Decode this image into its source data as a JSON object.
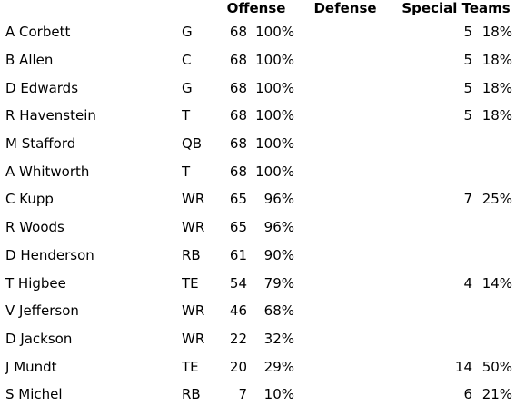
{
  "headers": {
    "offense": "Offense",
    "defense": "Defense",
    "special_teams": "Special Teams"
  },
  "players": [
    {
      "name": "A Corbett",
      "pos": "G",
      "off_snaps": "68",
      "off_pct": "100%",
      "def_snaps": "",
      "def_pct": "",
      "st_snaps": "5",
      "st_pct": "18%"
    },
    {
      "name": "B Allen",
      "pos": "C",
      "off_snaps": "68",
      "off_pct": "100%",
      "def_snaps": "",
      "def_pct": "",
      "st_snaps": "5",
      "st_pct": "18%"
    },
    {
      "name": "D Edwards",
      "pos": "G",
      "off_snaps": "68",
      "off_pct": "100%",
      "def_snaps": "",
      "def_pct": "",
      "st_snaps": "5",
      "st_pct": "18%"
    },
    {
      "name": "R Havenstein",
      "pos": "T",
      "off_snaps": "68",
      "off_pct": "100%",
      "def_snaps": "",
      "def_pct": "",
      "st_snaps": "5",
      "st_pct": "18%"
    },
    {
      "name": "M Stafford",
      "pos": "QB",
      "off_snaps": "68",
      "off_pct": "100%",
      "def_snaps": "",
      "def_pct": "",
      "st_snaps": "",
      "st_pct": ""
    },
    {
      "name": "A Whitworth",
      "pos": "T",
      "off_snaps": "68",
      "off_pct": "100%",
      "def_snaps": "",
      "def_pct": "",
      "st_snaps": "",
      "st_pct": ""
    },
    {
      "name": "C Kupp",
      "pos": "WR",
      "off_snaps": "65",
      "off_pct": "96%",
      "def_snaps": "",
      "def_pct": "",
      "st_snaps": "7",
      "st_pct": "25%"
    },
    {
      "name": "R Woods",
      "pos": "WR",
      "off_snaps": "65",
      "off_pct": "96%",
      "def_snaps": "",
      "def_pct": "",
      "st_snaps": "",
      "st_pct": ""
    },
    {
      "name": "D Henderson",
      "pos": "RB",
      "off_snaps": "61",
      "off_pct": "90%",
      "def_snaps": "",
      "def_pct": "",
      "st_snaps": "",
      "st_pct": ""
    },
    {
      "name": "T Higbee",
      "pos": "TE",
      "off_snaps": "54",
      "off_pct": "79%",
      "def_snaps": "",
      "def_pct": "",
      "st_snaps": "4",
      "st_pct": "14%"
    },
    {
      "name": "V Jefferson",
      "pos": "WR",
      "off_snaps": "46",
      "off_pct": "68%",
      "def_snaps": "",
      "def_pct": "",
      "st_snaps": "",
      "st_pct": ""
    },
    {
      "name": "D Jackson",
      "pos": "WR",
      "off_snaps": "22",
      "off_pct": "32%",
      "def_snaps": "",
      "def_pct": "",
      "st_snaps": "",
      "st_pct": ""
    },
    {
      "name": "J Mundt",
      "pos": "TE",
      "off_snaps": "20",
      "off_pct": "29%",
      "def_snaps": "",
      "def_pct": "",
      "st_snaps": "14",
      "st_pct": "50%"
    },
    {
      "name": "S Michel",
      "pos": "RB",
      "off_snaps": "7",
      "off_pct": "10%",
      "def_snaps": "",
      "def_pct": "",
      "st_snaps": "6",
      "st_pct": "21%"
    }
  ]
}
